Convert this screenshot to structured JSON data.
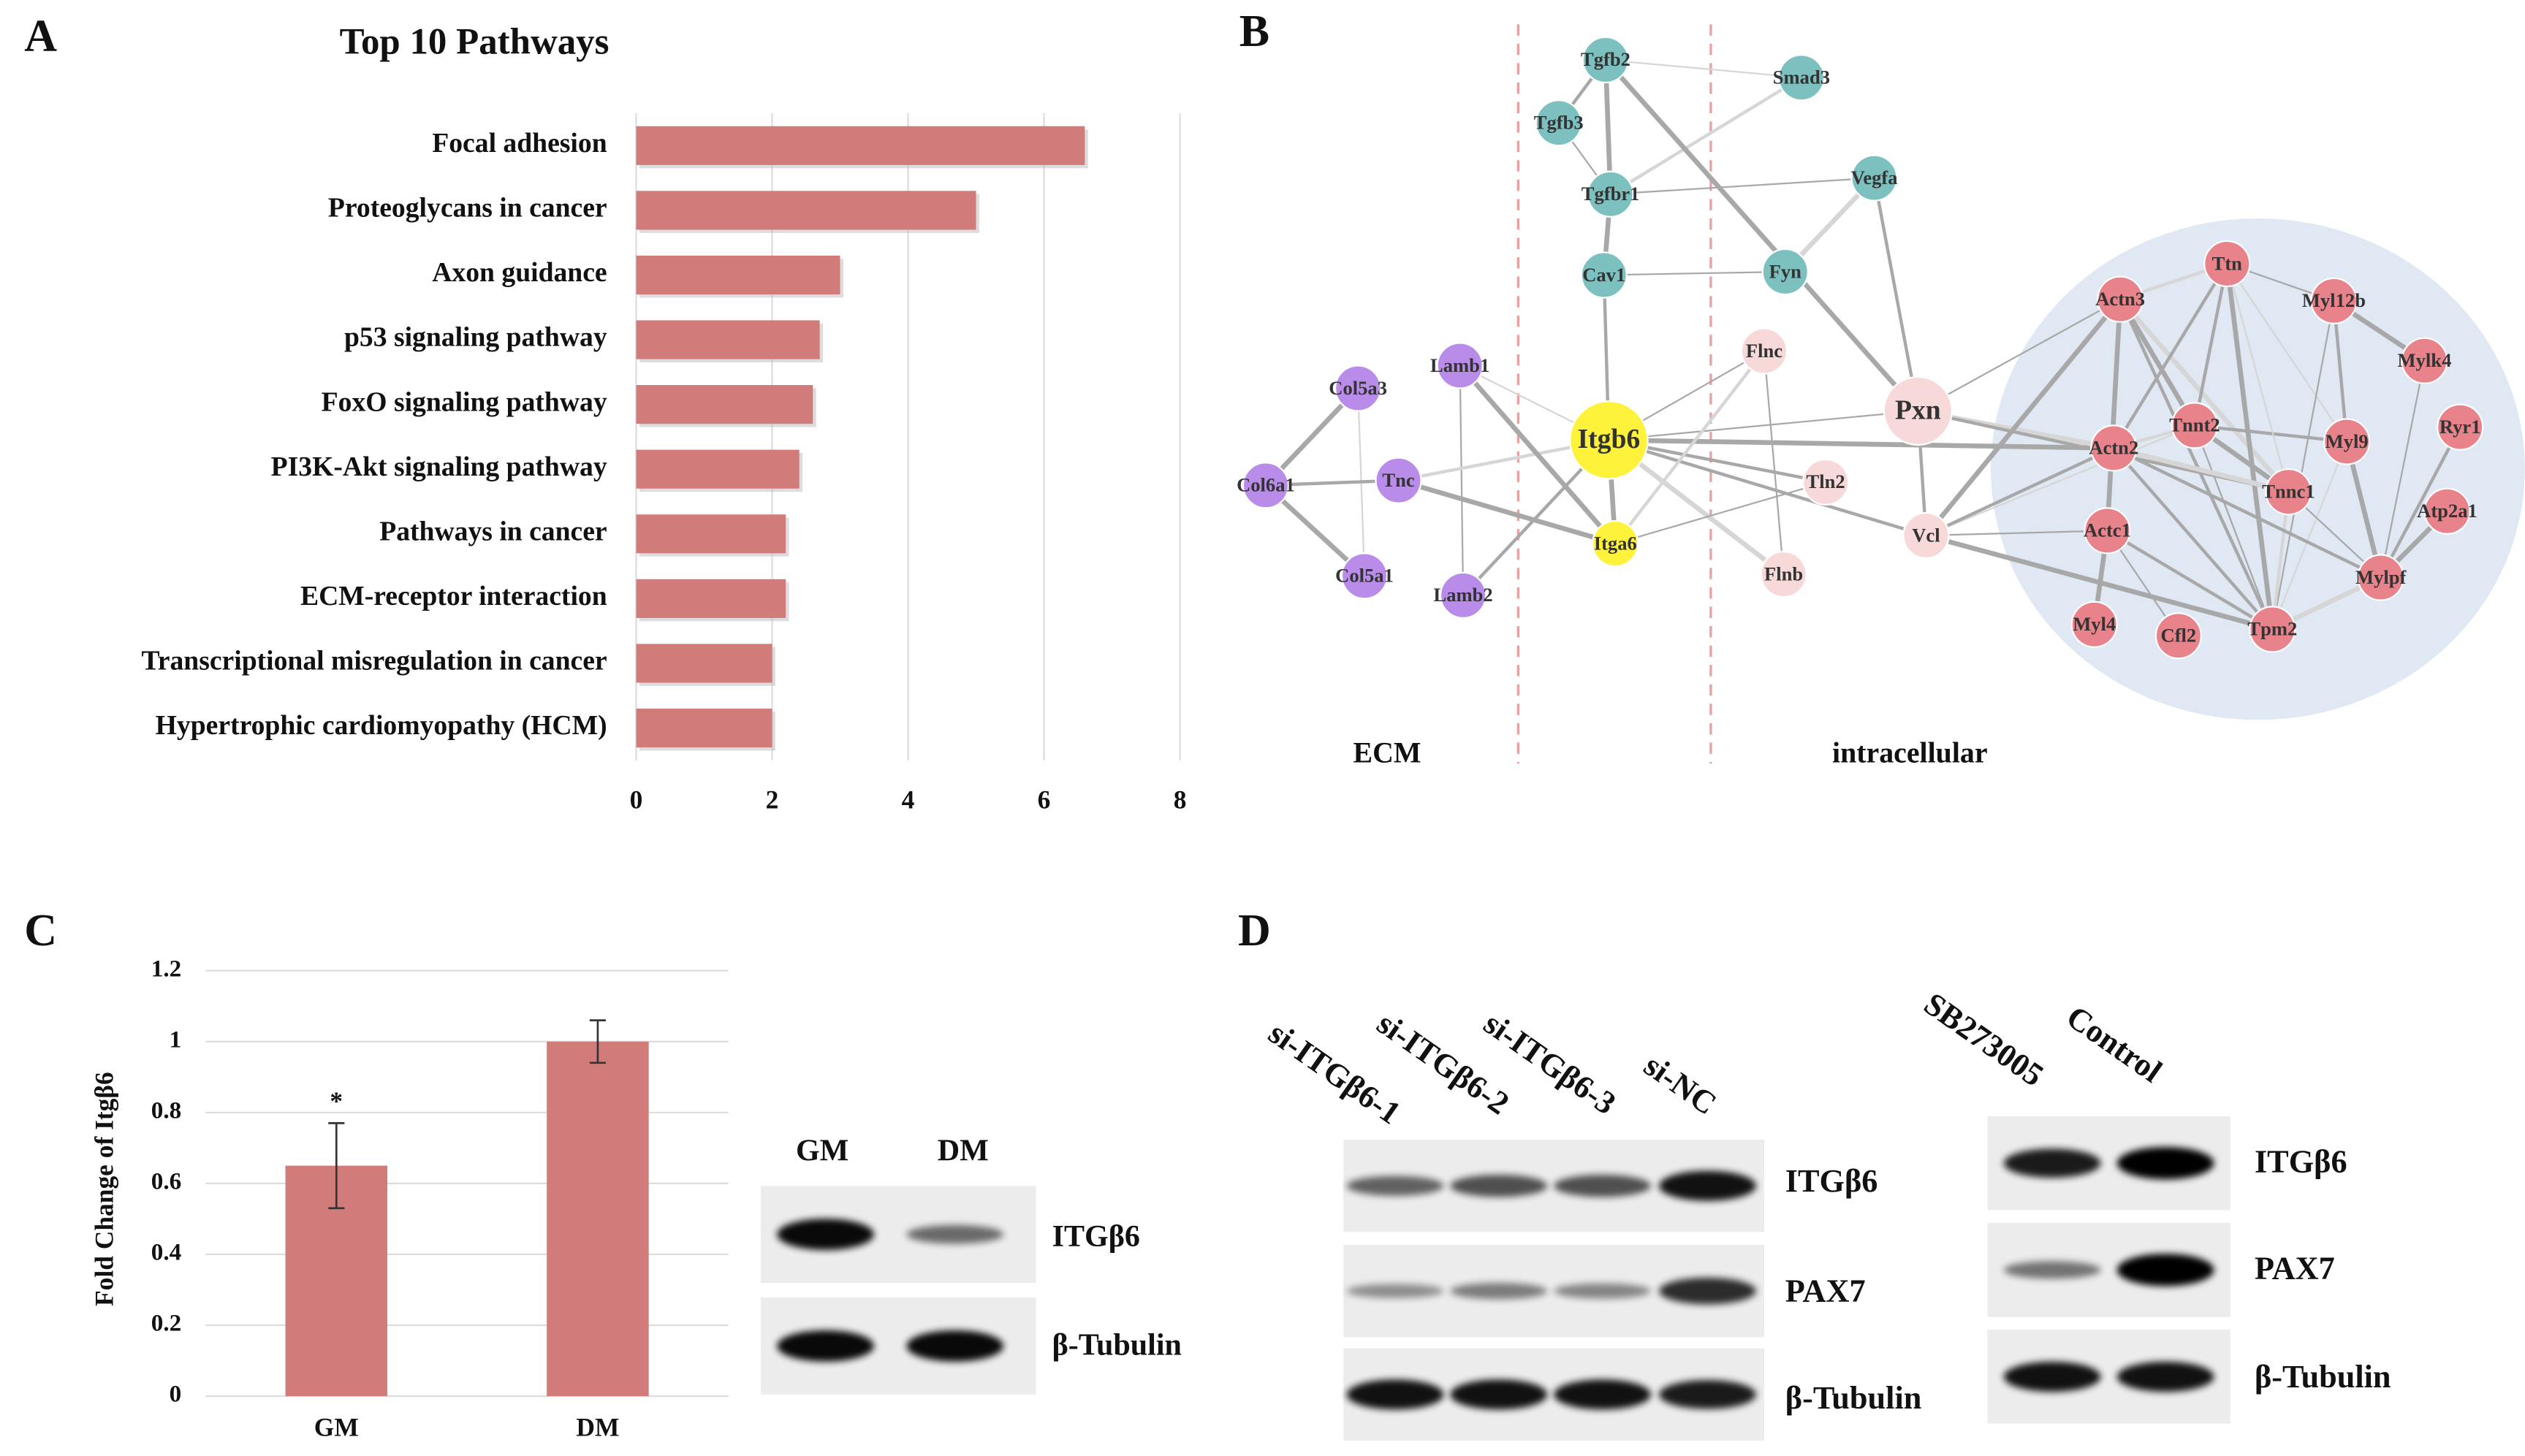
{
  "panels": [
    "A",
    "B",
    "C",
    "D"
  ],
  "chart_data": [
    {
      "type": "bar",
      "orientation": "horizontal",
      "title": "Top 10 Pathways",
      "categories": [
        "Focal adhesion",
        "Proteoglycans in cancer",
        "Axon guidance",
        "p53 signaling pathway",
        "FoxO signaling pathway",
        "PI3K-Akt signaling pathway",
        "Pathways in cancer",
        "ECM-receptor interaction",
        "Transcriptional misregulation in cancer",
        "Hypertrophic cardiomyopathy (HCM)"
      ],
      "values": [
        6.6,
        5.0,
        3.0,
        2.7,
        2.6,
        2.4,
        2.2,
        2.2,
        2.0,
        2.0
      ],
      "color": "#d27b7b",
      "xlim": [
        0,
        8
      ],
      "xticks": [
        0,
        2,
        4,
        6,
        8
      ],
      "grid": true
    },
    {
      "type": "bar",
      "orientation": "vertical",
      "ylabel": "Fold Change of Itgβ6",
      "categories": [
        "GM",
        "DM"
      ],
      "values": [
        0.65,
        1
      ],
      "errors": [
        0.12,
        0.06
      ],
      "color": "#d27b7b",
      "ylim": [
        0,
        1.2
      ],
      "yticks": [
        0,
        0.2,
        0.4,
        0.6,
        0.8,
        1,
        1.2
      ],
      "grid": true,
      "annotations": [
        {
          "text": "*",
          "category": "GM"
        }
      ]
    }
  ],
  "network": {
    "regions": [
      "ECM",
      "intracellular"
    ],
    "nodes": [
      {
        "label": "Tgfb2",
        "color": "#7cc0c0"
      },
      {
        "label": "Smad3",
        "color": "#7cc0c0"
      },
      {
        "label": "Tgfb3",
        "color": "#7cc0c0"
      },
      {
        "label": "Tgfbr1",
        "color": "#7cc0c0"
      },
      {
        "label": "Vegfa",
        "color": "#7cc0c0"
      },
      {
        "label": "Cav1",
        "color": "#7cc0c0"
      },
      {
        "label": "Fyn",
        "color": "#7cc0c0"
      },
      {
        "label": "Lamb1",
        "color": "#b88ce8"
      },
      {
        "label": "Col5a3",
        "color": "#b88ce8"
      },
      {
        "label": "Tnc",
        "color": "#b88ce8"
      },
      {
        "label": "Col6a1",
        "color": "#b88ce8"
      },
      {
        "label": "Col5a1",
        "color": "#b88ce8"
      },
      {
        "label": "Lamb2",
        "color": "#b88ce8"
      },
      {
        "label": "Itgb6",
        "color": "#fff23a"
      },
      {
        "label": "Itga6",
        "color": "#fff23a"
      },
      {
        "label": "Flnc",
        "color": "#f8d9d9"
      },
      {
        "label": "Tln2",
        "color": "#f8d9d9"
      },
      {
        "label": "Flnb",
        "color": "#f8d9d9"
      },
      {
        "label": "Pxn",
        "color": "#f8d9d9"
      },
      {
        "label": "Vcl",
        "color": "#f8d9d9"
      },
      {
        "label": "Ttn",
        "color": "#e8838b"
      },
      {
        "label": "Actn3",
        "color": "#e8838b"
      },
      {
        "label": "Myl12b",
        "color": "#e8838b"
      },
      {
        "label": "Mylk4",
        "color": "#e8838b"
      },
      {
        "label": "Tnnt2",
        "color": "#e8838b"
      },
      {
        "label": "Actn2",
        "color": "#e8838b"
      },
      {
        "label": "Myl9",
        "color": "#e8838b"
      },
      {
        "label": "Ryr1",
        "color": "#e8838b"
      },
      {
        "label": "Tnnc1",
        "color": "#e8838b"
      },
      {
        "label": "Atp2a1",
        "color": "#e8838b"
      },
      {
        "label": "Actc1",
        "color": "#e8838b"
      },
      {
        "label": "Mylpf",
        "color": "#e8838b"
      },
      {
        "label": "Myl4",
        "color": "#e8838b"
      },
      {
        "label": "Cfl2",
        "color": "#e8838b"
      },
      {
        "label": "Tpm2",
        "color": "#e8838b"
      }
    ]
  },
  "blot_c": {
    "lanes": [
      "GM",
      "DM"
    ],
    "rows": [
      "ITGβ6",
      "β-Tubulin"
    ]
  },
  "blot_d": [
    {
      "lanes": [
        "si-ITGβ6-1",
        "si-ITGβ6-2",
        "si-ITGβ6-3",
        "si-NC"
      ],
      "rows": [
        "ITGβ6",
        "PAX7",
        "β-Tubulin"
      ]
    },
    {
      "lanes": [
        "SB273005",
        "Control"
      ],
      "rows": [
        "ITGβ6",
        "PAX7",
        "β-Tubulin"
      ]
    }
  ]
}
